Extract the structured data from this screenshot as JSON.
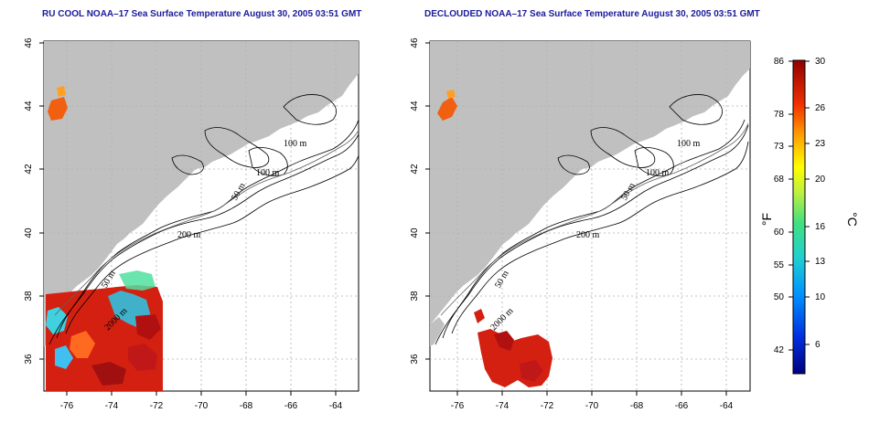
{
  "panels": [
    {
      "title": "RU COOL NOAA–17 Sea Surface Temperature August 30, 2005 03:51 GMT",
      "x_ticks": [
        "-76",
        "-74",
        "-72",
        "-70",
        "-68",
        "-66",
        "-64"
      ],
      "y_ticks": [
        "36",
        "38",
        "40",
        "42",
        "44",
        "46"
      ],
      "contour_labels": [
        "100 m",
        "100 m",
        "50 m",
        "200 m",
        "50 m",
        "2000 m"
      ]
    },
    {
      "title": "DECLOUDED NOAA–17 Sea Surface Temperature August 30, 2005 03:51 GMT",
      "x_ticks": [
        "-76",
        "-74",
        "-72",
        "-70",
        "-68",
        "-66",
        "-64"
      ],
      "y_ticks": [
        "36",
        "38",
        "40",
        "42",
        "44",
        "46"
      ],
      "contour_labels": [
        "100 m",
        "100 m",
        "50 m",
        "200 m",
        "50 m",
        "2000 m"
      ]
    }
  ],
  "colorbar": {
    "fahrenheit_labels": [
      "86",
      "78",
      "73",
      "68",
      "60",
      "55",
      "50",
      "42"
    ],
    "celsius_labels": [
      "30",
      "26",
      "23",
      "20",
      "16",
      "13",
      "10",
      "6"
    ],
    "fahrenheit_unit": "°F",
    "celsius_unit": "°C"
  },
  "colors": {
    "land": "#c0c0c0",
    "ocean": "#ffffff",
    "title": "#1a1a9c",
    "warm": "#d42010",
    "cool": "#30c0e0"
  }
}
